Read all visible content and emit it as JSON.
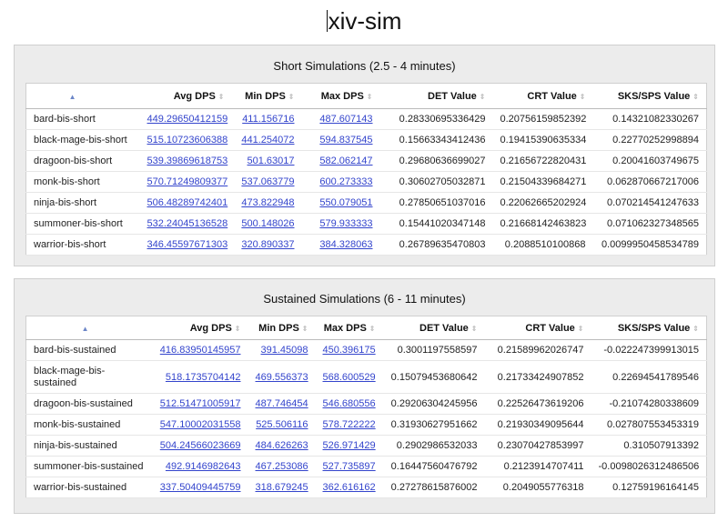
{
  "app": {
    "title": "xiv-sim"
  },
  "short": {
    "title": "Short Simulations (2.5 - 4 minutes)",
    "columns": [
      "Avg DPS",
      "Min DPS",
      "Max DPS",
      "DET Value",
      "CRT Value",
      "SKS/SPS Value"
    ],
    "rows": [
      [
        "bard-bis-short",
        "449.29650412159",
        "411.156716",
        "487.607143",
        "0.28330695336429",
        "0.20756159852392",
        "0.14321082330267"
      ],
      [
        "black-mage-bis-short",
        "515.10723606388",
        "441.254072",
        "594.837545",
        "0.15663343412436",
        "0.19415390635334",
        "0.22770252998894"
      ],
      [
        "dragoon-bis-short",
        "539.39869618753",
        "501.63017",
        "582.062147",
        "0.29680636699027",
        "0.21656722820431",
        "0.20041603749675"
      ],
      [
        "monk-bis-short",
        "570.71249809377",
        "537.063779",
        "600.273333",
        "0.30602705032871",
        "0.21504339684271",
        "0.062870667217006"
      ],
      [
        "ninja-bis-short",
        "506.48289742401",
        "473.822948",
        "550.079051",
        "0.27850651037016",
        "0.22062665202924",
        "0.070214541247633"
      ],
      [
        "summoner-bis-short",
        "532.24045136528",
        "500.148026",
        "579.933333",
        "0.15441020347148",
        "0.21668142463823",
        "0.071062327348565"
      ],
      [
        "warrior-bis-short",
        "346.45597671303",
        "320.890337",
        "384.328063",
        "0.26789635470803",
        "0.2088510100868",
        "0.0099950458534789"
      ]
    ]
  },
  "sustained": {
    "title": "Sustained Simulations (6 - 11 minutes)",
    "columns": [
      "Avg DPS",
      "Min DPS",
      "Max DPS",
      "DET Value",
      "CRT Value",
      "SKS/SPS Value"
    ],
    "rows": [
      [
        "bard-bis-sustained",
        "416.83950145957",
        "391.45098",
        "450.396175",
        "0.3001197558597",
        "0.21589962026747",
        "-0.022247399913015"
      ],
      [
        "black-mage-bis-sustained",
        "518.1735704142",
        "469.556373",
        "568.600529",
        "0.15079453680642",
        "0.21733424907852",
        "0.22694541789546"
      ],
      [
        "dragoon-bis-sustained",
        "512.51471005917",
        "487.746454",
        "546.680556",
        "0.29206304245956",
        "0.22526473619206",
        "-0.21074280338609"
      ],
      [
        "monk-bis-sustained",
        "547.10002031558",
        "525.506116",
        "578.722222",
        "0.31930627951662",
        "0.21930349095644",
        "0.027807553453319"
      ],
      [
        "ninja-bis-sustained",
        "504.24566023669",
        "484.626263",
        "526.971429",
        "0.2902986532033",
        "0.23070427853997",
        "0.310507913392"
      ],
      [
        "summoner-bis-sustained",
        "492.9146982643",
        "467.253086",
        "527.735897",
        "0.16447560476792",
        "0.2123914707411",
        "-0.0098026312486506"
      ],
      [
        "warrior-bis-sustained",
        "337.50409445759",
        "318.679245",
        "362.616162",
        "0.27278615876002",
        "0.2049055776318",
        "0.12759196164145"
      ]
    ]
  }
}
